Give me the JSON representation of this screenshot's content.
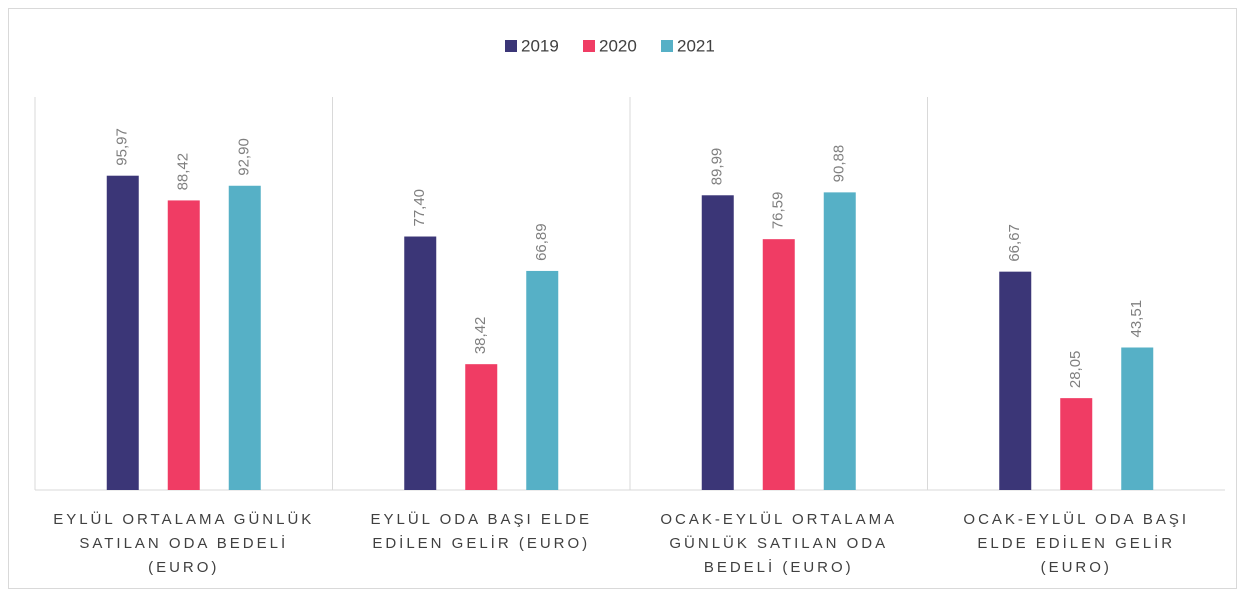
{
  "chart_data": {
    "type": "bar",
    "categories": [
      "EYLÜL ORTALAMA GÜNLÜK SATILAN ODA BEDELİ (EURO)",
      "EYLÜL ODA BAŞI ELDE EDİLEN GELİR (EURO)",
      "OCAK-EYLÜL ORTALAMA GÜNLÜK SATILAN ODA BEDELİ (EURO)",
      "OCAK-EYLÜL ODA BAŞI ELDE EDİLEN GELİR (EURO)"
    ],
    "series": [
      {
        "name": "2019",
        "color": "#3b3677",
        "values": [
          95.97,
          77.4,
          89.99,
          66.67
        ],
        "value_labels": [
          "95,97",
          "77,40",
          "89,99",
          "66,67"
        ]
      },
      {
        "name": "2020",
        "color": "#f03c64",
        "values": [
          88.42,
          38.42,
          76.59,
          28.05
        ],
        "value_labels": [
          "88,42",
          "38,42",
          "76,59",
          "28,05"
        ]
      },
      {
        "name": "2021",
        "color": "#56b0c6",
        "values": [
          92.9,
          66.89,
          90.88,
          43.51
        ],
        "value_labels": [
          "92,90",
          "66,89",
          "90,88",
          "43,51"
        ]
      }
    ],
    "ylim": [
      0,
      120
    ],
    "legend": "top"
  }
}
